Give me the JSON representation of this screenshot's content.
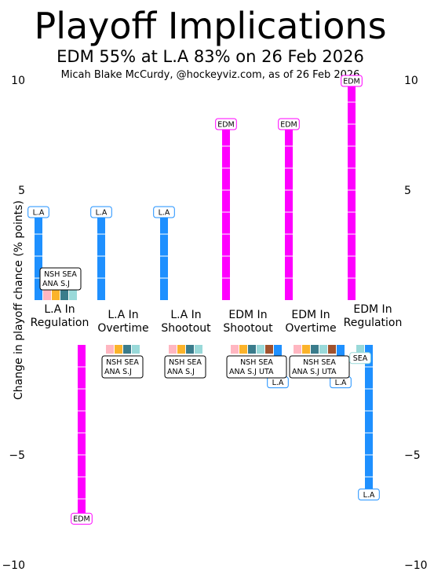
{
  "title": "Playoff Implications",
  "subtitle": "EDM 55% at L.A 83% on 26 Feb 2026",
  "credit": "Micah Blake McCurdy, @hockeyviz.com, as of 26 Feb 2026",
  "chart_data": {
    "type": "bar",
    "ylabel": "Change in playoff chance (% points)",
    "ylim": [
      -10,
      10
    ],
    "yticks": [
      -10,
      -5,
      5,
      10
    ],
    "categories": [
      [
        "L.A In",
        "Regulation"
      ],
      [
        "L.A In",
        "Overtime"
      ],
      [
        "L.A In",
        "Shootout"
      ],
      [
        "EDM In",
        "Shootout"
      ],
      [
        "EDM In",
        "Overtime"
      ],
      [
        "EDM In",
        "Regulation"
      ]
    ],
    "team_colors": {
      "L.A": "#1e90ff",
      "EDM": "#ff00ff",
      "NSH": "#ffb6c1",
      "ANA": "#fbb32a",
      "SEA": "#99d9d9",
      "S.J": "#3a7c8c",
      "UTA": "#a0522d"
    },
    "scenarios": [
      {
        "bars": [
          {
            "team": "L.A",
            "value": 4.0,
            "label": "L.A"
          },
          {
            "team": "EDM",
            "value": -7.9,
            "label": "EDM"
          },
          {
            "team": "NSH",
            "value": 0.5
          },
          {
            "team": "ANA",
            "value": 0.5
          },
          {
            "team": "S.J",
            "value": 0.5
          },
          {
            "team": "SEA",
            "value": 0.5
          }
        ],
        "group_label": [
          "NSH SEA",
          "ANA S.J"
        ],
        "group_sign": 1
      },
      {
        "bars": [
          {
            "team": "L.A",
            "value": 4.0,
            "label": "L.A"
          },
          {
            "team": "NSH",
            "value": -0.4
          },
          {
            "team": "ANA",
            "value": -0.4
          },
          {
            "team": "S.J",
            "value": -0.4
          },
          {
            "team": "SEA",
            "value": -0.4
          }
        ],
        "group_label": [
          "NSH SEA",
          "ANA S.J"
        ],
        "group_sign": -1
      },
      {
        "bars": [
          {
            "team": "L.A",
            "value": 4.0,
            "label": "L.A"
          },
          {
            "team": "NSH",
            "value": -0.4
          },
          {
            "team": "ANA",
            "value": -0.4
          },
          {
            "team": "S.J",
            "value": -0.4
          },
          {
            "team": "SEA",
            "value": -0.4
          }
        ],
        "group_label": [
          "NSH SEA",
          "ANA S.J"
        ],
        "group_sign": -1
      },
      {
        "bars": [
          {
            "team": "EDM",
            "value": 8.0,
            "label": "EDM"
          },
          {
            "team": "NSH",
            "value": -0.4
          },
          {
            "team": "ANA",
            "value": -0.4
          },
          {
            "team": "S.J",
            "value": -0.4
          },
          {
            "team": "SEA",
            "value": -0.4
          },
          {
            "team": "UTA",
            "value": -0.4
          },
          {
            "team": "L.A",
            "value": -1.7,
            "label": "L.A"
          }
        ],
        "group_label": [
          "NSH SEA",
          "ANA S.J UTA"
        ],
        "group_sign": -1
      },
      {
        "bars": [
          {
            "team": "EDM",
            "value": 8.0,
            "label": "EDM"
          },
          {
            "team": "NSH",
            "value": -0.4
          },
          {
            "team": "ANA",
            "value": -0.4
          },
          {
            "team": "S.J",
            "value": -0.4
          },
          {
            "team": "SEA",
            "value": -0.4
          },
          {
            "team": "UTA",
            "value": -0.4
          },
          {
            "team": "L.A",
            "value": -1.7,
            "label": "L.A"
          }
        ],
        "group_label": [
          "NSH SEA",
          "ANA S.J UTA"
        ],
        "group_sign": -1
      },
      {
        "bars": [
          {
            "team": "EDM",
            "value": 10.0,
            "label": "EDM"
          },
          {
            "team": "SEA",
            "value": -0.6,
            "label": "SEA"
          },
          {
            "team": "L.A",
            "value": -6.8,
            "label": "L.A"
          }
        ],
        "group_label": null,
        "group_sign": 0
      }
    ]
  }
}
